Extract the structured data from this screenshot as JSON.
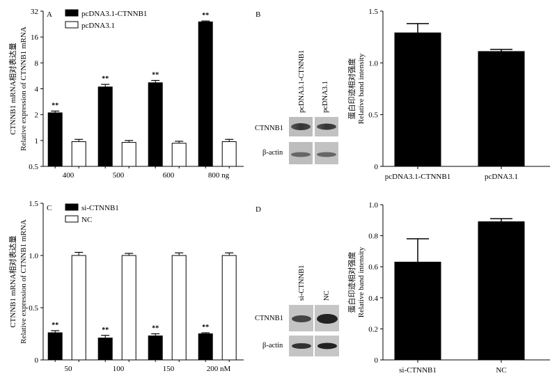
{
  "chart_data": [
    {
      "id": "A",
      "type": "bar",
      "panel_label": "A",
      "ylabel_cn": "CTNNB1 mRNA相对表达量",
      "ylabel_en": "Relative expression of CTNNB1 mRNA",
      "y_scale": "log2",
      "ylim": [
        0.5,
        32
      ],
      "yticks": [
        0.5,
        1,
        2,
        4,
        8,
        16,
        32
      ],
      "yticklabels": [
        "0.5",
        "1",
        "2",
        "4",
        "8",
        "16",
        "32"
      ],
      "categories": [
        "400",
        "500",
        "600",
        "800 ng"
      ],
      "series": [
        {
          "name": "pcDNA3.1-CTNNB1",
          "color": "#000000",
          "values": [
            2.1,
            4.2,
            4.7,
            24.0
          ],
          "errors": [
            0.1,
            0.3,
            0.3,
            0.6
          ],
          "marks": [
            "**",
            "**",
            "**",
            "**"
          ]
        },
        {
          "name": "pcDNA3.1",
          "color": "#ffffff",
          "values": [
            0.97,
            0.95,
            0.93,
            0.97
          ],
          "errors": [
            0.06,
            0.05,
            0.05,
            0.06
          ],
          "marks": [
            "",
            "",
            "",
            ""
          ]
        }
      ],
      "legend": "top-left"
    },
    {
      "id": "B",
      "type": "bar",
      "ylabel_cn": "蛋白印迹相对强度",
      "ylabel_en": "Relative band intensity",
      "ylim": [
        0,
        1.5
      ],
      "yticks": [
        0,
        0.5,
        1.0,
        1.5
      ],
      "yticklabels": [
        "0",
        "0.5",
        "1.0",
        "1.5"
      ],
      "categories": [
        "pcDNA3.1-CTNNB1",
        "pcDNA3.1"
      ],
      "values": [
        1.29,
        1.11
      ],
      "errors": [
        0.09,
        0.02
      ],
      "color": "#000000"
    },
    {
      "id": "C",
      "type": "bar",
      "panel_label": "C",
      "ylabel_cn": "CTNNB1 mRNA相对表达量",
      "ylabel_en": "Relative expression of CTNNB1 mRNA",
      "ylim": [
        0,
        1.5
      ],
      "yticks": [
        0,
        0.5,
        1.0,
        1.5
      ],
      "yticklabels": [
        "0",
        "0.5",
        "1.0",
        "1.5"
      ],
      "categories": [
        "50",
        "100",
        "150",
        "200 nM"
      ],
      "series": [
        {
          "name": "si-CTNNB1",
          "color": "#000000",
          "values": [
            0.26,
            0.21,
            0.23,
            0.25
          ],
          "errors": [
            0.02,
            0.025,
            0.02,
            0.01
          ],
          "marks": [
            "**",
            "**",
            "**",
            "**"
          ]
        },
        {
          "name": "NC",
          "color": "#ffffff",
          "values": [
            1.0,
            1.0,
            1.0,
            1.0
          ],
          "errors": [
            0.03,
            0.02,
            0.025,
            0.025
          ],
          "marks": [
            "",
            "",
            "",
            ""
          ]
        }
      ],
      "legend": "top-left"
    },
    {
      "id": "D",
      "type": "bar",
      "ylabel_cn": "蛋白印迹相对强度",
      "ylabel_en": "Relative band intensity",
      "ylim": [
        0,
        1.0
      ],
      "yticks": [
        0,
        0.2,
        0.4,
        0.6,
        0.8,
        1.0
      ],
      "yticklabels": [
        "0",
        "0.2",
        "0.4",
        "0.6",
        "0.8",
        "1.0"
      ],
      "categories": [
        "si-CTNNB1",
        "NC"
      ],
      "values": [
        0.63,
        0.89
      ],
      "errors": [
        0.15,
        0.02
      ],
      "color": "#000000"
    }
  ],
  "blots": [
    {
      "id": "B",
      "panel_label": "B",
      "lanes": [
        "pcDNA3.1-CTNNB1",
        "pcDNA3.1"
      ],
      "rows": [
        "CTNNB1",
        "β-actin"
      ]
    },
    {
      "id": "D",
      "panel_label": "D",
      "lanes": [
        "si-CTNNB1",
        "NC"
      ],
      "rows": [
        "CTNNB1",
        "β-actin"
      ]
    }
  ]
}
